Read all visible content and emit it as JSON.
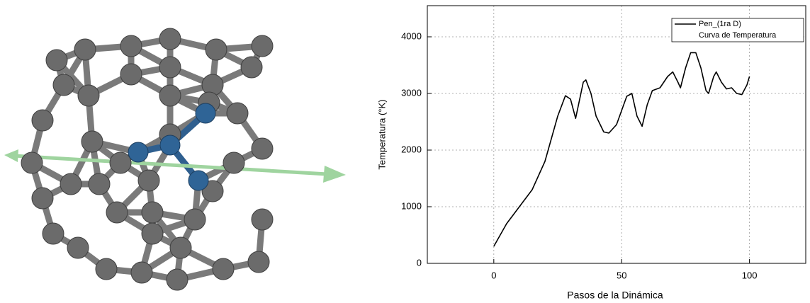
{
  "chart_data": {
    "type": "line",
    "xlabel": "Pasos de la Dinámica",
    "ylabel": "Temperatura (°K)",
    "x": [
      0,
      5,
      10,
      15,
      20,
      25,
      28,
      30,
      32,
      35,
      36,
      38,
      40,
      43,
      45,
      48,
      50,
      52,
      54,
      56,
      58,
      60,
      62,
      65,
      68,
      70,
      72,
      73,
      75,
      77,
      79,
      81,
      83,
      84,
      86,
      87,
      89,
      91,
      93,
      95,
      97,
      99,
      100
    ],
    "series": [
      {
        "name": "Pen_(1ra D)",
        "color": "#000000",
        "values": [
          300,
          700,
          1000,
          1300,
          1800,
          2600,
          2960,
          2900,
          2560,
          3200,
          3240,
          3000,
          2600,
          2320,
          2300,
          2450,
          2700,
          2950,
          3000,
          2600,
          2420,
          2800,
          3050,
          3100,
          3300,
          3380,
          3200,
          3100,
          3450,
          3720,
          3720,
          3450,
          3050,
          3000,
          3300,
          3380,
          3200,
          3080,
          3100,
          3000,
          2980,
          3150,
          3300
        ]
      }
    ],
    "legend_note": "Curva de Temperatura",
    "xlim": [
      -26,
      122
    ],
    "xticks": [
      0,
      50,
      100
    ],
    "ylim": [
      0,
      4550
    ],
    "yticks": [
      0,
      1000,
      2000,
      3000,
      4000
    ],
    "grid": true,
    "legend": "upper right"
  }
}
